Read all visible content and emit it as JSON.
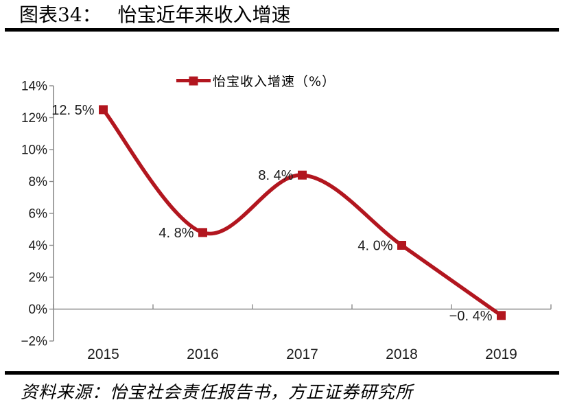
{
  "figure": {
    "title_prefix": "图表34：",
    "title_text": "怡宝近年来收入增速",
    "source_text": "资料来源：怡宝社会责任报告书，方正证券研究所"
  },
  "legend": {
    "label": "怡宝收入增速（%）"
  },
  "chart_data": {
    "type": "line",
    "smooth": true,
    "title": "怡宝近年来收入增速",
    "xlabel": "",
    "ylabel": "",
    "categories": [
      "2015",
      "2016",
      "2017",
      "2018",
      "2019"
    ],
    "series": [
      {
        "name": "怡宝收入增速（%）",
        "values": [
          12.5,
          4.8,
          8.4,
          4.0,
          -0.4
        ]
      }
    ],
    "point_labels": [
      "12. 5%",
      "4. 8%",
      "8. 4%",
      "4. 0%",
      "−0. 4%"
    ],
    "ylim": [
      -2,
      14
    ],
    "ytick_step": 2,
    "ytick_labels_top_to_bottom": [
      "14%",
      "12%",
      "10%",
      "8%",
      "6%",
      "4%",
      "2%",
      "0%",
      "−2%"
    ],
    "grid": false,
    "legend_position": "top-center",
    "marker": "square",
    "colors": {
      "line": "#B2161F",
      "marker": "#B2161F",
      "axis": "#8A8A8A",
      "tick_label": "#1C1C1C",
      "data_label": "#1C1C1C"
    }
  }
}
